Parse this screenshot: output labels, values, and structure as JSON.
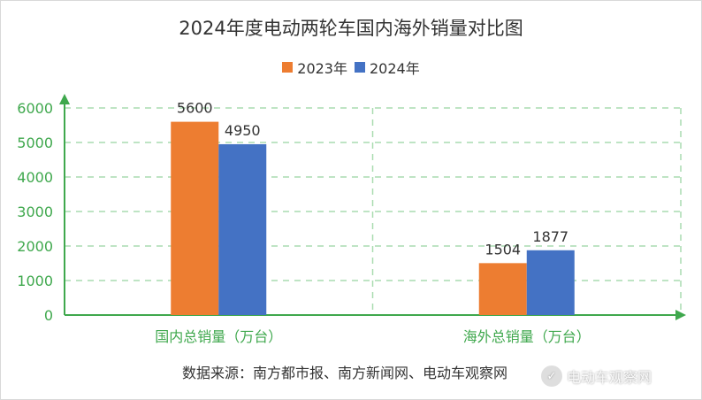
{
  "chart_data": {
    "type": "bar",
    "title": "2024年度电动两轮车国内海外销量对比图",
    "categories": [
      "国内总销量（万台）",
      "海外总销量（万台）"
    ],
    "series": [
      {
        "name": "2023年",
        "values": [
          5600,
          1504
        ],
        "color": "#ed7d31"
      },
      {
        "name": "2024年",
        "values": [
          4950,
          1877
        ],
        "color": "#4472c4"
      }
    ],
    "ylim": [
      0,
      6000
    ],
    "yticks": [
      0,
      1000,
      2000,
      3000,
      4000,
      5000,
      6000
    ],
    "grid": true,
    "legend": "top",
    "axis_color": "#3fa84d",
    "grid_color": "#a9dcb0"
  },
  "source": "数据来源：南方都市报、南方新闻网、电动车观察网",
  "watermark": "电动车观察网"
}
